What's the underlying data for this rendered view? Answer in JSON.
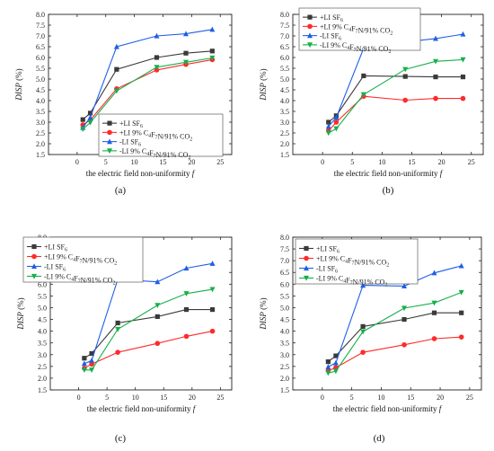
{
  "figure": {
    "panel_labels": [
      "(a)",
      "(b)",
      "(c)",
      "(d)"
    ]
  },
  "chart_data": [
    {
      "panel": "(a)",
      "type": "line",
      "xlabel": "the electric field non-uniformity f",
      "ylabel": "DISP (%)",
      "xlim": [
        -5,
        27
      ],
      "ylim": [
        1.5,
        8.0
      ],
      "xticks": [
        0,
        5,
        10,
        15,
        20,
        25
      ],
      "yticks": [
        1.5,
        2.0,
        2.5,
        3.0,
        3.5,
        4.0,
        4.5,
        5.0,
        5.5,
        6.0,
        6.5,
        7.0,
        7.5,
        8.0
      ],
      "legend_position": "bottom-right",
      "x": [
        1.0,
        2.3,
        6.9,
        13.9,
        19.0,
        23.6
      ],
      "series": [
        {
          "name": "+LI SF6",
          "color": "#3a3a3a",
          "marker": "square",
          "values": [
            3.12,
            3.42,
            5.45,
            6.0,
            6.2,
            6.3
          ]
        },
        {
          "name": "+LI 9% C4F7N/91% CO2",
          "color": "#ff2a2a",
          "marker": "circle",
          "values": [
            2.88,
            3.1,
            4.55,
            5.42,
            5.68,
            5.9
          ]
        },
        {
          "name": "-LI SF6",
          "color": "#1f5fe6",
          "marker": "triangle-up",
          "values": [
            2.75,
            3.22,
            6.5,
            7.0,
            7.1,
            7.3
          ]
        },
        {
          "name": "-LI 9% C4F7N/91% CO2",
          "color": "#14b04a",
          "marker": "triangle-down",
          "values": [
            2.68,
            2.98,
            4.45,
            5.55,
            5.78,
            5.98
          ]
        }
      ]
    },
    {
      "panel": "(b)",
      "type": "line",
      "xlabel": "the electric field non-uniformity f",
      "ylabel": "DISP (%)",
      "xlim": [
        -5,
        27
      ],
      "ylim": [
        1.5,
        8.0
      ],
      "xticks": [
        0,
        5,
        10,
        15,
        20,
        25
      ],
      "yticks": [
        1.5,
        2.0,
        2.5,
        3.0,
        3.5,
        4.0,
        4.5,
        5.0,
        5.5,
        6.0,
        6.5,
        7.0,
        7.5,
        8.0
      ],
      "legend_position": "top-left",
      "x": [
        1.0,
        2.3,
        6.9,
        13.9,
        19.0,
        23.6
      ],
      "series": [
        {
          "name": "+LI SF6",
          "color": "#3a3a3a",
          "marker": "square",
          "values": [
            3.0,
            3.3,
            5.15,
            5.12,
            5.1,
            5.1
          ]
        },
        {
          "name": "+LI 9% C4F7N/91% CO2",
          "color": "#ff2a2a",
          "marker": "circle",
          "values": [
            2.6,
            3.0,
            4.2,
            4.02,
            4.1,
            4.1
          ]
        },
        {
          "name": "-LI SF6",
          "color": "#1f5fe6",
          "marker": "triangle-up",
          "values": [
            2.8,
            3.22,
            6.42,
            6.72,
            6.88,
            7.08
          ]
        },
        {
          "name": "-LI 9% C4F7N/91% CO2",
          "color": "#14b04a",
          "marker": "triangle-down",
          "values": [
            2.5,
            2.7,
            4.28,
            5.45,
            5.82,
            5.9
          ]
        }
      ]
    },
    {
      "panel": "(c)",
      "type": "line",
      "xlabel": "the electric field non-uniformity f",
      "ylabel": "DISP (%)",
      "xlim": [
        -5,
        27
      ],
      "ylim": [
        1.5,
        8.0
      ],
      "xticks": [
        0,
        5,
        10,
        15,
        20,
        25
      ],
      "yticks": [
        1.5,
        2.0,
        2.5,
        3.0,
        3.5,
        4.0,
        4.5,
        5.0,
        5.5,
        6.0,
        6.5,
        7.0,
        7.5,
        8.0
      ],
      "legend_position": "top-left",
      "x": [
        1.0,
        2.3,
        6.9,
        13.9,
        19.0,
        23.6
      ],
      "series": [
        {
          "name": "+LI SF6",
          "color": "#3a3a3a",
          "marker": "square",
          "values": [
            2.85,
            3.05,
            4.35,
            4.62,
            4.92,
            4.92
          ]
        },
        {
          "name": "+LI 9% C4F7N/91% CO2",
          "color": "#ff2a2a",
          "marker": "circle",
          "values": [
            2.42,
            2.6,
            3.1,
            3.48,
            3.78,
            4.0
          ]
        },
        {
          "name": "-LI SF6",
          "color": "#1f5fe6",
          "marker": "triangle-up",
          "values": [
            2.62,
            2.75,
            6.2,
            6.1,
            6.68,
            6.88
          ]
        },
        {
          "name": "-LI 9% C4F7N/91% CO2",
          "color": "#14b04a",
          "marker": "triangle-down",
          "values": [
            2.35,
            2.35,
            4.08,
            5.1,
            5.6,
            5.78
          ]
        }
      ]
    },
    {
      "panel": "(d)",
      "type": "line",
      "xlabel": "the electric field non-uniformity f",
      "ylabel": "DISP (%)",
      "xlim": [
        -5,
        27
      ],
      "ylim": [
        1.5,
        8.0
      ],
      "xticks": [
        0,
        5,
        10,
        15,
        20,
        25
      ],
      "yticks": [
        1.5,
        2.0,
        2.5,
        3.0,
        3.5,
        4.0,
        4.5,
        5.0,
        5.5,
        6.0,
        6.5,
        7.0,
        7.5,
        8.0
      ],
      "legend_position": "top-left",
      "x": [
        1.0,
        2.3,
        6.9,
        13.9,
        19.0,
        23.6
      ],
      "series": [
        {
          "name": "+LI SF6",
          "color": "#3a3a3a",
          "marker": "square",
          "values": [
            2.7,
            2.95,
            4.2,
            4.5,
            4.78,
            4.78
          ]
        },
        {
          "name": "+LI 9% C4F7N/91% CO2",
          "color": "#ff2a2a",
          "marker": "circle",
          "values": [
            2.32,
            2.45,
            3.1,
            3.42,
            3.68,
            3.75
          ]
        },
        {
          "name": "-LI SF6",
          "color": "#1f5fe6",
          "marker": "triangle-up",
          "values": [
            2.48,
            2.65,
            5.95,
            5.92,
            6.48,
            6.78
          ]
        },
        {
          "name": "-LI 9% C4F7N/91% CO2",
          "color": "#14b04a",
          "marker": "triangle-down",
          "values": [
            2.22,
            2.3,
            3.98,
            4.98,
            5.2,
            5.65
          ]
        }
      ]
    }
  ]
}
